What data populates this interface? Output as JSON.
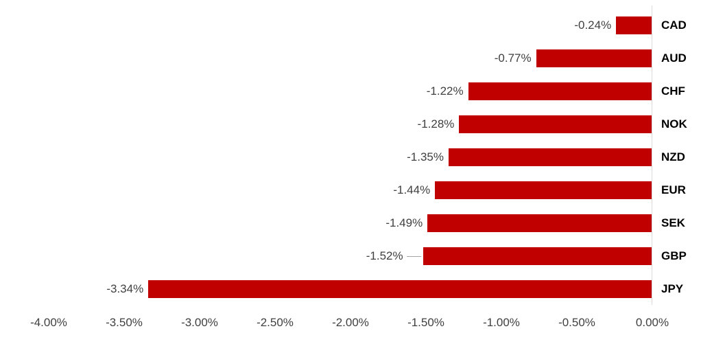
{
  "chart_data": {
    "type": "bar",
    "orientation": "horizontal",
    "title": "",
    "xlabel": "",
    "ylabel": "",
    "legend": null,
    "grid": false,
    "categories": [
      "CAD",
      "AUD",
      "CHF",
      "NOK",
      "NZD",
      "EUR",
      "SEK",
      "GBP",
      "JPY"
    ],
    "values": [
      -0.24,
      -0.77,
      -1.22,
      -1.28,
      -1.35,
      -1.44,
      -1.49,
      -1.52,
      -3.34
    ],
    "bars": [
      {
        "code": "CAD",
        "value": -0.24,
        "label": "-0.24%",
        "leader_line": false
      },
      {
        "code": "AUD",
        "value": -0.77,
        "label": "-0.77%",
        "leader_line": false
      },
      {
        "code": "CHF",
        "value": -1.22,
        "label": "-1.22%",
        "leader_line": false
      },
      {
        "code": "NOK",
        "value": -1.28,
        "label": "-1.28%",
        "leader_line": false
      },
      {
        "code": "NZD",
        "value": -1.35,
        "label": "-1.35%",
        "leader_line": false
      },
      {
        "code": "EUR",
        "value": -1.44,
        "label": "-1.44%",
        "leader_line": false
      },
      {
        "code": "SEK",
        "value": -1.49,
        "label": "-1.49%",
        "leader_line": false
      },
      {
        "code": "GBP",
        "value": -1.52,
        "label": "-1.52%",
        "leader_line": true
      },
      {
        "code": "JPY",
        "value": -3.34,
        "label": "-3.34%",
        "leader_line": false
      }
    ],
    "axis": {
      "min": -4.0,
      "max": 0.0,
      "tick_step": 0.5,
      "ticks": [
        {
          "value": -4.0,
          "label": "-4.00%"
        },
        {
          "value": -3.5,
          "label": "-3.50%"
        },
        {
          "value": -3.0,
          "label": "-3.00%"
        },
        {
          "value": -2.5,
          "label": "-2.50%"
        },
        {
          "value": -2.0,
          "label": "-2.00%"
        },
        {
          "value": -1.5,
          "label": "-1.50%"
        },
        {
          "value": -1.0,
          "label": "-1.00%"
        },
        {
          "value": -0.5,
          "label": "-0.50%"
        },
        {
          "value": 0.0,
          "label": "0.00%"
        }
      ]
    },
    "colors": {
      "bar": "#C00000",
      "axis_line": "#D9D9D9",
      "data_label": "#404040",
      "tick_label": "#404040",
      "category_label": "#000000",
      "leader_line": "#A6A6A6",
      "background": "#FFFFFF"
    }
  }
}
